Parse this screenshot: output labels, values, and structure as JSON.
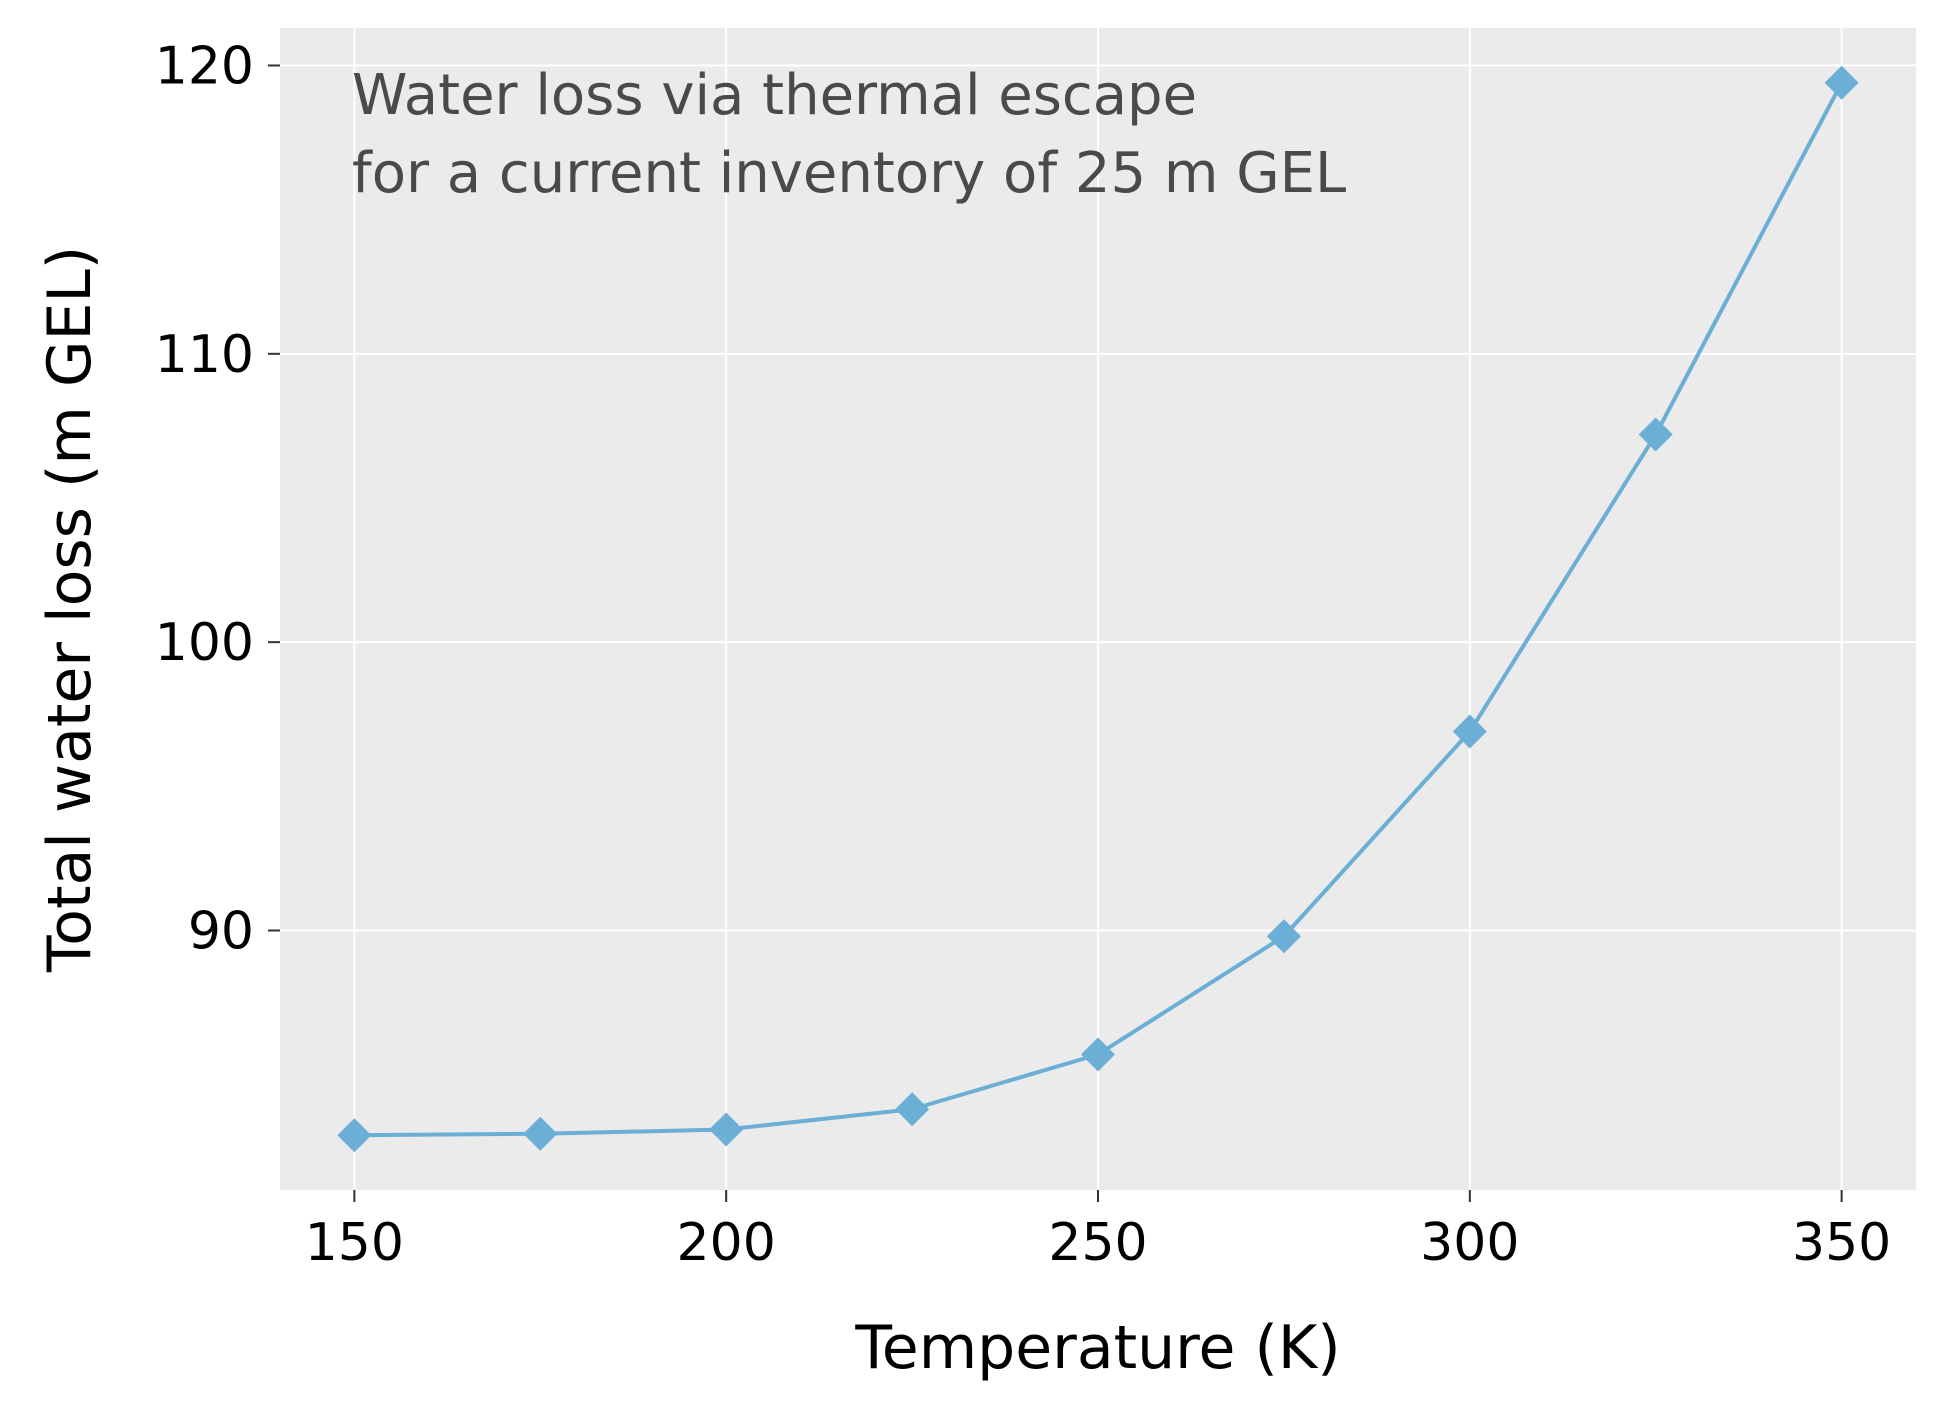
{
  "chart_data": {
    "type": "line",
    "title": "",
    "annotation_lines": [
      "Water loss via thermal escape",
      "for a current inventory of 25 m GEL"
    ],
    "xlabel": "Temperature (K)",
    "ylabel": "Total water loss (m GEL)",
    "xlim": [
      140,
      360
    ],
    "ylim": [
      81,
      121.3
    ],
    "x_ticks": [
      150,
      200,
      250,
      300,
      350
    ],
    "y_ticks": [
      90,
      100,
      110,
      120
    ],
    "grid": true,
    "legend": "none",
    "colors": {
      "plot_background": "#ebebeb",
      "grid": "#ffffff",
      "series": "#6baed6",
      "annotation": "#4a4a4a"
    },
    "series": [
      {
        "marker": "diamond",
        "x": [
          150,
          175,
          200,
          225,
          250,
          275,
          300,
          325,
          350
        ],
        "y": [
          82.9,
          82.95,
          83.1,
          83.8,
          85.7,
          89.8,
          96.9,
          107.2,
          119.4
        ]
      }
    ]
  }
}
